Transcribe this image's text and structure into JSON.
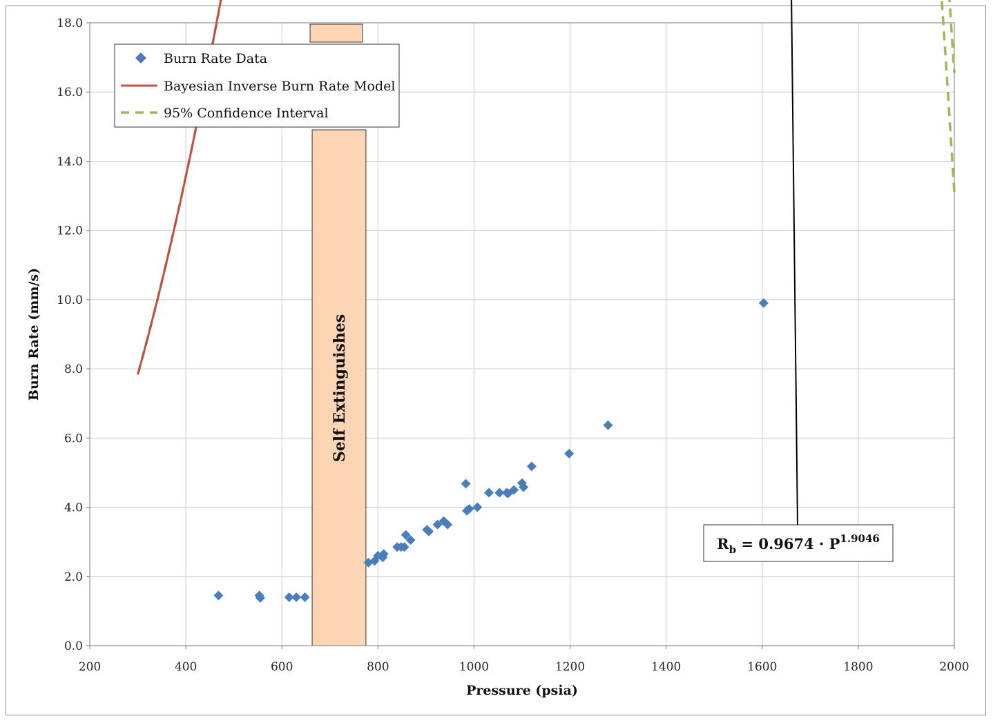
{
  "chart_data": {
    "type": "scatter",
    "xlabel": "Pressure  (psia)",
    "ylabel": "Burn Rate (mm/s)",
    "xlim": [
      200,
      2000
    ],
    "ylim": [
      0,
      18
    ],
    "xticks": [
      200,
      400,
      600,
      800,
      1000,
      1200,
      1400,
      1600,
      1800,
      2000
    ],
    "yticks": [
      "0.0",
      "2.0",
      "4.0",
      "6.0",
      "8.0",
      "10.0",
      "12.0",
      "14.0",
      "16.0",
      "18.0"
    ],
    "grid": true,
    "legend_position": "top-left",
    "series": [
      {
        "name": "Burn Rate Data",
        "kind": "scatter",
        "color": "#4a7ebb",
        "points": [
          [
            468,
            1.45
          ],
          [
            553,
            1.45
          ],
          [
            555,
            1.38
          ],
          [
            615,
            1.4
          ],
          [
            630,
            1.4
          ],
          [
            648,
            1.4
          ],
          [
            780,
            2.4
          ],
          [
            793,
            2.45
          ],
          [
            800,
            2.6
          ],
          [
            810,
            2.55
          ],
          [
            812,
            2.65
          ],
          [
            840,
            2.85
          ],
          [
            848,
            2.85
          ],
          [
            855,
            2.85
          ],
          [
            858,
            3.2
          ],
          [
            868,
            3.05
          ],
          [
            902,
            3.35
          ],
          [
            906,
            3.3
          ],
          [
            924,
            3.5
          ],
          [
            937,
            3.6
          ],
          [
            945,
            3.5
          ],
          [
            983,
            4.68
          ],
          [
            985,
            3.9
          ],
          [
            990,
            3.95
          ],
          [
            1007,
            4.0
          ],
          [
            1031,
            4.42
          ],
          [
            1053,
            4.42
          ],
          [
            1068,
            4.42
          ],
          [
            1071,
            4.4
          ],
          [
            1083,
            4.5
          ],
          [
            1100,
            4.7
          ],
          [
            1103,
            4.58
          ],
          [
            1120,
            5.18
          ],
          [
            1198,
            5.55
          ],
          [
            1279,
            6.37
          ],
          [
            1603,
            9.9
          ]
        ]
      },
      {
        "name": "Bayesian Inverse Burn Rate Model",
        "kind": "line",
        "color": "#c0504d",
        "coef": 0.9674,
        "exponent": 1.9046,
        "x_range": [
          300,
          2000
        ]
      },
      {
        "name": "95% Confidence Interval",
        "kind": "dashed",
        "color": "#9bbb59",
        "upper_at_2000": 16.55,
        "lower_at_2000": 13.1
      }
    ],
    "annotations": {
      "band": {
        "x_range": [
          663,
          775
        ],
        "label": "Self Extinguishes",
        "color": "#fcd5b5"
      },
      "equation": {
        "main": "R",
        "sub": "b",
        "mid": " = 0.9674 · P",
        "sup": "1.9046",
        "arrow_to_x": 1530
      }
    }
  }
}
